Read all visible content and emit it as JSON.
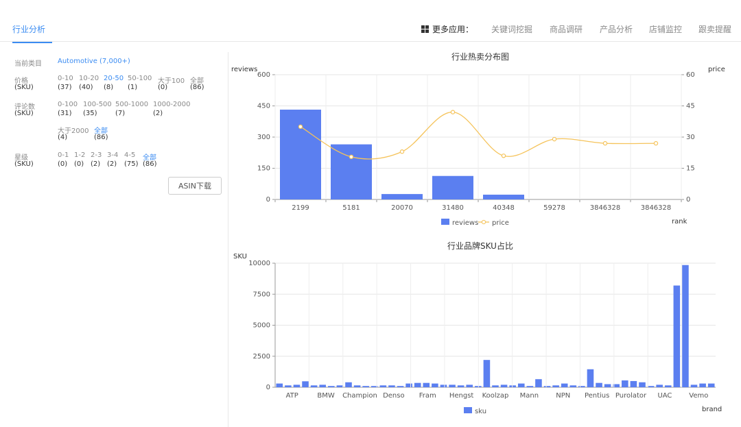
{
  "header": {
    "active_tab": "行业分析",
    "more_apps": "更多应用：",
    "links": [
      "关键词挖掘",
      "商品调研",
      "产品分析",
      "店铺监控",
      "跟卖提醒"
    ]
  },
  "filters": {
    "category_label": "当前类目",
    "category_value": "Automotive (7,000+)",
    "price": {
      "label": "价格",
      "sublabel": "(SKU)",
      "ranges": [
        "0-10",
        "10-20",
        "20-50",
        "50-100",
        "大于100",
        "全部"
      ],
      "counts": [
        "(37)",
        "(40)",
        "(8)",
        "(1)",
        "(0)",
        "(86)"
      ]
    },
    "reviews": {
      "label": "评论数",
      "sublabel": "(SKU)",
      "ranges": [
        "0-100",
        "100-500",
        "500-1000",
        "1000-2000"
      ],
      "counts": [
        "(31)",
        "(35)",
        "(7)",
        "(2)"
      ],
      "ranges2": [
        "大于2000",
        "全部"
      ],
      "counts2": [
        "(4)",
        "(86)"
      ]
    },
    "stars": {
      "label": "星级",
      "sublabel": "(SKU)",
      "ranges": [
        "0-1",
        "1-2",
        "2-3",
        "3-4",
        "4-5",
        "全部"
      ],
      "counts": [
        "(0)",
        "(0)",
        "(2)",
        "(2)",
        "(75)",
        "(86)"
      ]
    },
    "asin_download": "ASIN下载"
  },
  "colors": {
    "accent": "#3b8cf2",
    "bar": "#5b7ff0",
    "line": "#f5c35a"
  },
  "chart_data": [
    {
      "type": "bar",
      "title": "行业热卖分布图",
      "xlabel": "rank",
      "ylabel": "reviews",
      "y2label": "price",
      "categories": [
        "2199",
        "5181",
        "20070",
        "31480",
        "40348",
        "59278",
        "3846328",
        "3846328"
      ],
      "ylim": [
        0,
        600
      ],
      "y2lim": [
        0,
        60
      ],
      "yticks": [
        "0",
        "150",
        "300",
        "450",
        "600"
      ],
      "y2ticks": [
        "0",
        "15",
        "30",
        "45",
        "60"
      ],
      "series": [
        {
          "name": "reviews",
          "type": "bar",
          "values": [
            432,
            265,
            26,
            113,
            23,
            0,
            0,
            0
          ]
        },
        {
          "name": "price",
          "type": "line",
          "values": [
            35,
            20.5,
            23,
            42,
            21,
            29,
            27,
            27
          ]
        }
      ],
      "legend": "bottom"
    },
    {
      "type": "bar",
      "title": "行业品牌SKU占比",
      "xlabel": "brand",
      "ylabel": "SKU",
      "ylim": [
        0,
        10000
      ],
      "yticks": [
        "0",
        "2500",
        "5000",
        "7500",
        "10000"
      ],
      "tick_labels": [
        "ATP",
        "BMW",
        "Champion",
        "Denso",
        "Fram",
        "Hengst",
        "Koolzap",
        "Mann",
        "NPN",
        "Pentius",
        "Purolator",
        "UAC",
        "Vemo"
      ],
      "series": [
        {
          "name": "sku",
          "values": [
            300,
            150,
            200,
            480,
            150,
            200,
            100,
            150,
            400,
            150,
            100,
            100,
            150,
            150,
            100,
            300,
            350,
            350,
            300,
            200,
            200,
            150,
            200,
            100,
            2200,
            150,
            200,
            150,
            300,
            100,
            650,
            100,
            150,
            300,
            150,
            100,
            1450,
            350,
            250,
            250,
            550,
            500,
            400,
            100,
            200,
            150,
            8200,
            9850,
            200,
            300,
            300
          ]
        }
      ],
      "legend": "bottom"
    }
  ]
}
